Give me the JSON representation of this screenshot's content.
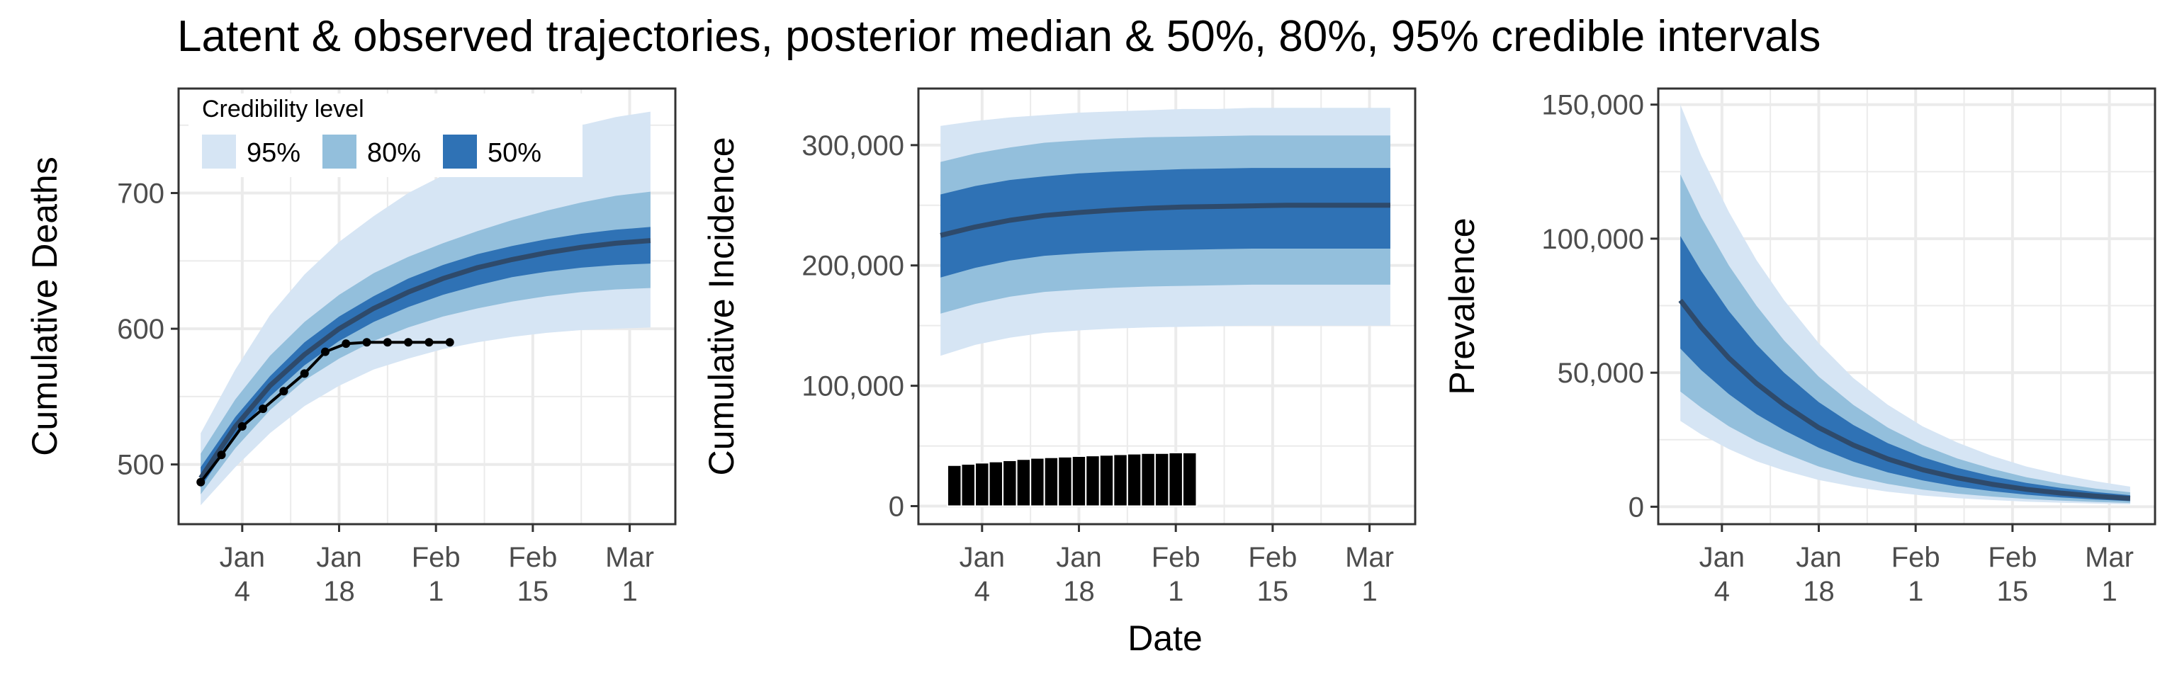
{
  "figure": {
    "title": "Latent & observed trajectories, posterior median & 50%, 80%, 95% credible intervals",
    "shared_xlabel": "Date"
  },
  "colors": {
    "band_95": "#d6e5f4",
    "band_80": "#93bfdc",
    "band_50": "#2f72b5",
    "median": "#2e4a6b",
    "observed": "#000000",
    "grid": "#ebebeb",
    "panel_border": "#333333"
  },
  "legend": {
    "title": "Credibility level",
    "items": [
      {
        "label": "95%",
        "color_key": "band_95"
      },
      {
        "label": "80%",
        "color_key": "band_80"
      },
      {
        "label": "50%",
        "color_key": "band_50"
      }
    ]
  },
  "chart_data": [
    {
      "type": "area",
      "id": "deaths",
      "ylabel": "Cumulative Deaths",
      "x_ticks": [
        {
          "day": 3,
          "label": [
            "Jan",
            "4"
          ]
        },
        {
          "day": 17,
          "label": [
            "Jan",
            "18"
          ]
        },
        {
          "day": 31,
          "label": [
            "Feb",
            "1"
          ]
        },
        {
          "day": 45,
          "label": [
            "Feb",
            "15"
          ]
        },
        {
          "day": 59,
          "label": [
            "Mar",
            "1"
          ]
        }
      ],
      "xlim_day": [
        -6.2,
        65.6
      ],
      "ylim": [
        456,
        777
      ],
      "y_ticks": [
        {
          "v": 500,
          "label": "500"
        },
        {
          "v": 600,
          "label": "600"
        },
        {
          "v": 700,
          "label": "700"
        }
      ],
      "bands": {
        "x": [
          -3,
          2,
          7,
          12,
          17,
          22,
          27,
          32,
          37,
          42,
          47,
          52,
          57,
          62
        ],
        "q025": [
          470,
          498,
          523,
          543,
          558,
          570,
          578,
          585,
          590,
          594,
          597,
          599,
          600,
          601
        ],
        "q975": [
          523,
          570,
          610,
          640,
          664,
          683,
          700,
          713,
          725,
          735,
          743,
          750,
          756,
          760
        ],
        "q10": [
          478,
          512,
          540,
          562,
          578,
          591,
          601,
          609,
          615,
          620,
          624,
          627,
          629,
          630
        ],
        "q90": [
          508,
          548,
          580,
          605,
          625,
          641,
          653,
          663,
          672,
          680,
          687,
          693,
          698,
          701
        ],
        "q25": [
          483,
          521,
          550,
          573,
          591,
          605,
          616,
          625,
          632,
          638,
          642,
          645,
          647,
          648
        ],
        "q75": [
          498,
          535,
          565,
          590,
          609,
          624,
          637,
          647,
          655,
          661,
          666,
          670,
          673,
          675
        ],
        "median": [
          490,
          528,
          558,
          581,
          600,
          615,
          627,
          637,
          645,
          651,
          656,
          660,
          663,
          665
        ]
      },
      "observed": {
        "x": [
          -3,
          0,
          3,
          6,
          9,
          12,
          15,
          18,
          21,
          24,
          27,
          30,
          33
        ],
        "y": [
          487,
          507,
          528,
          541,
          554,
          567,
          583,
          589,
          590,
          590,
          590,
          590,
          590
        ]
      }
    },
    {
      "type": "area",
      "id": "incidence",
      "ylabel": "Cumulative Incidence",
      "x_ticks": [
        {
          "day": 3,
          "label": [
            "Jan",
            "4"
          ]
        },
        {
          "day": 17,
          "label": [
            "Jan",
            "18"
          ]
        },
        {
          "day": 31,
          "label": [
            "Feb",
            "1"
          ]
        },
        {
          "day": 45,
          "label": [
            "Feb",
            "15"
          ]
        },
        {
          "day": 59,
          "label": [
            "Mar",
            "1"
          ]
        }
      ],
      "xlim_day": [
        -6.2,
        65.6
      ],
      "ylim": [
        -15000,
        347000
      ],
      "y_ticks": [
        {
          "v": 0,
          "label": "0"
        },
        {
          "v": 100000,
          "label": "100,000"
        },
        {
          "v": 200000,
          "label": "200,000"
        },
        {
          "v": 300000,
          "label": "300,000"
        }
      ],
      "bands": {
        "x": [
          -3,
          2,
          7,
          12,
          17,
          22,
          27,
          32,
          37,
          42,
          47,
          52,
          57,
          62
        ],
        "q025": [
          125000,
          134000,
          140000,
          144000,
          146000,
          147500,
          148500,
          149000,
          149500,
          150000,
          150000,
          150000,
          150000,
          150000
        ],
        "q975": [
          316000,
          320000,
          323000,
          325000,
          327000,
          328000,
          329000,
          330000,
          330000,
          331000,
          331000,
          331000,
          331000,
          331000
        ],
        "q10": [
          160000,
          168000,
          174000,
          178000,
          180000,
          181500,
          182500,
          183000,
          183500,
          184000,
          184000,
          184000,
          184000,
          184000
        ],
        "q90": [
          286000,
          293000,
          298000,
          302000,
          304000,
          305500,
          306500,
          307000,
          307500,
          308000,
          308000,
          308000,
          308000,
          308000
        ],
        "q25": [
          190000,
          198000,
          204000,
          208000,
          210000,
          211500,
          212500,
          213000,
          213500,
          214000,
          214000,
          214000,
          214000,
          214000
        ],
        "q75": [
          259000,
          266000,
          271000,
          274000,
          276500,
          278000,
          279000,
          280000,
          280500,
          281000,
          281000,
          281000,
          281000,
          281000
        ],
        "median": [
          225000,
          232000,
          237500,
          241500,
          244000,
          246000,
          247500,
          248500,
          249000,
          249500,
          250000,
          250000,
          250000,
          250000
        ]
      },
      "observed_bars": {
        "x": [
          -1,
          1,
          3,
          5,
          7,
          9,
          11,
          13,
          15,
          17,
          19,
          21,
          23,
          25,
          27,
          29,
          31,
          33
        ],
        "y": [
          34000,
          35000,
          36000,
          37000,
          38000,
          39000,
          40000,
          40500,
          41000,
          41500,
          42000,
          42500,
          43000,
          43500,
          44000,
          44000,
          44500,
          44500
        ],
        "bar_width_days": 2
      }
    },
    {
      "type": "area",
      "id": "prevalence",
      "ylabel": "Prevalence",
      "x_ticks": [
        {
          "day": 3,
          "label": [
            "Jan",
            "4"
          ]
        },
        {
          "day": 17,
          "label": [
            "Jan",
            "18"
          ]
        },
        {
          "day": 31,
          "label": [
            "Feb",
            "1"
          ]
        },
        {
          "day": 45,
          "label": [
            "Feb",
            "15"
          ]
        },
        {
          "day": 59,
          "label": [
            "Mar",
            "1"
          ]
        }
      ],
      "xlim_day": [
        -6.2,
        65.6
      ],
      "ylim": [
        -6500,
        156000
      ],
      "y_ticks": [
        {
          "v": 0,
          "label": "0"
        },
        {
          "v": 50000,
          "label": "50,000"
        },
        {
          "v": 100000,
          "label": "100,000"
        },
        {
          "v": 150000,
          "label": "150,000"
        }
      ],
      "bands": {
        "x": [
          -3,
          0,
          4,
          8,
          12,
          17,
          22,
          27,
          32,
          37,
          42,
          47,
          52,
          57,
          62
        ],
        "q025": [
          32000,
          27000,
          21500,
          17000,
          13500,
          10000,
          7500,
          5600,
          4200,
          3200,
          2500,
          1900,
          1500,
          1150,
          900
        ],
        "q975": [
          150000,
          131000,
          110000,
          92000,
          77000,
          61000,
          48000,
          38000,
          30000,
          24000,
          19000,
          15000,
          12000,
          9500,
          7500
        ],
        "q10": [
          43000,
          37000,
          30000,
          24500,
          20000,
          15000,
          11300,
          8500,
          6400,
          4900,
          3800,
          2900,
          2300,
          1800,
          1400
        ],
        "q90": [
          124000,
          108000,
          90000,
          75000,
          62000,
          48500,
          38000,
          29500,
          23000,
          18000,
          14200,
          11000,
          8700,
          6800,
          5400
        ],
        "q25": [
          59000,
          51000,
          42000,
          34500,
          28500,
          22000,
          16800,
          12800,
          9800,
          7500,
          5800,
          4500,
          3500,
          2700,
          2100
        ],
        "q75": [
          101000,
          88000,
          73000,
          60500,
          50000,
          39000,
          30500,
          23700,
          18500,
          14500,
          11400,
          8900,
          7000,
          5500,
          4300
        ],
        "median": [
          77000,
          67000,
          55500,
          46000,
          38000,
          29500,
          23000,
          17800,
          13800,
          10800,
          8400,
          6500,
          5100,
          4000,
          3100
        ]
      }
    }
  ]
}
